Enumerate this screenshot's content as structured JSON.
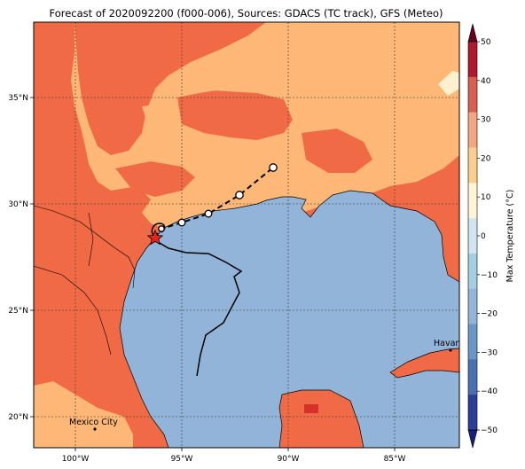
{
  "title": "Forecast of 2020092200 (f000-006), Sources: GDACS (TC track), GFS (Meteo)",
  "lon_ticks": [
    "100°W",
    "95°W",
    "90°W",
    "85°W"
  ],
  "lat_ticks": [
    "35°N",
    "30°N",
    "25°N",
    "20°N"
  ],
  "colorbar": {
    "label": "Max Temperature (°C)",
    "ticks": [
      "50",
      "40",
      "30",
      "20",
      "10",
      "0",
      "−10",
      "−20",
      "−30",
      "−40",
      "−50"
    ],
    "colors": [
      "#67001f",
      "#b2182b",
      "#d6604d",
      "#f4a582",
      "#fdcf8f",
      "#fff5d6",
      "#d1e5f0",
      "#a6cee3",
      "#92b4d8",
      "#6a97c8",
      "#4a6fb3",
      "#2b3f9a",
      "#161f7a"
    ]
  },
  "cities": [
    {
      "name": "Mexico City"
    },
    {
      "name": "Havana"
    }
  ],
  "colors": {
    "warm": "#ef6a45",
    "light_warm": "#fdb877",
    "cool": "#92b4d8",
    "very_warm": "#d73027"
  }
}
